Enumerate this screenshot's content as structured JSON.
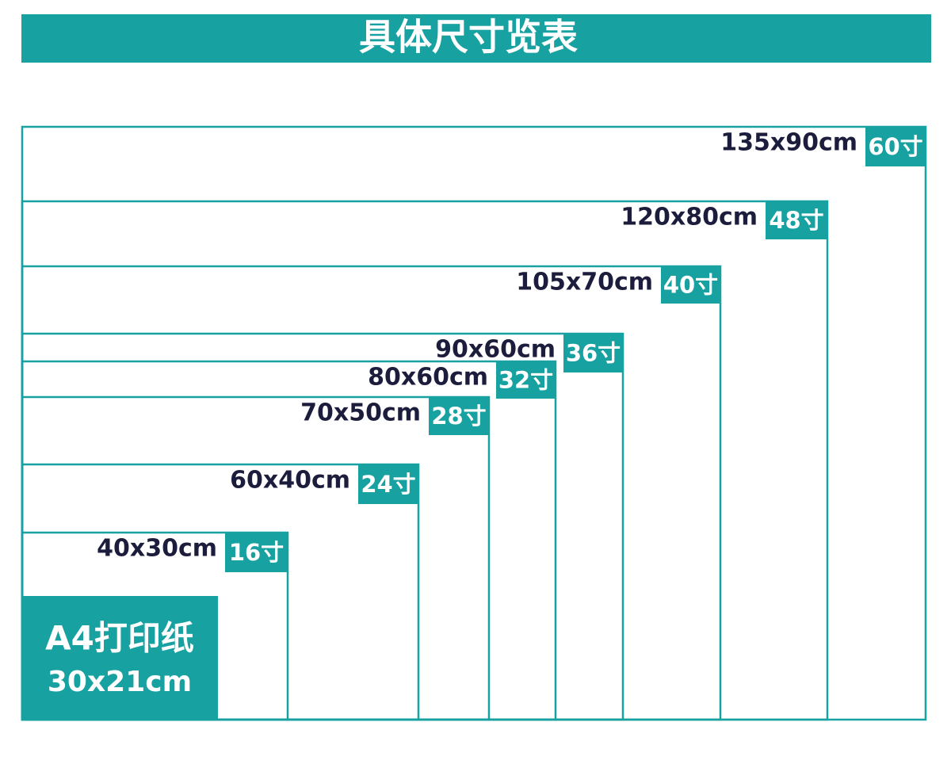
{
  "header": {
    "title": "具体尺寸览表"
  },
  "sizes": [
    {
      "dims": "135x90cm",
      "inch": "60寸"
    },
    {
      "dims": "120x80cm",
      "inch": "48寸"
    },
    {
      "dims": "105x70cm",
      "inch": "40寸"
    },
    {
      "dims": "90x60cm",
      "inch": "36寸"
    },
    {
      "dims": "80x60cm",
      "inch": "32寸"
    },
    {
      "dims": "70x50cm",
      "inch": "28寸"
    },
    {
      "dims": "60x40cm",
      "inch": "24寸"
    },
    {
      "dims": "40x30cm",
      "inch": "16寸"
    }
  ],
  "a4": {
    "label": "A4打印纸",
    "dims": "30x21cm"
  }
}
